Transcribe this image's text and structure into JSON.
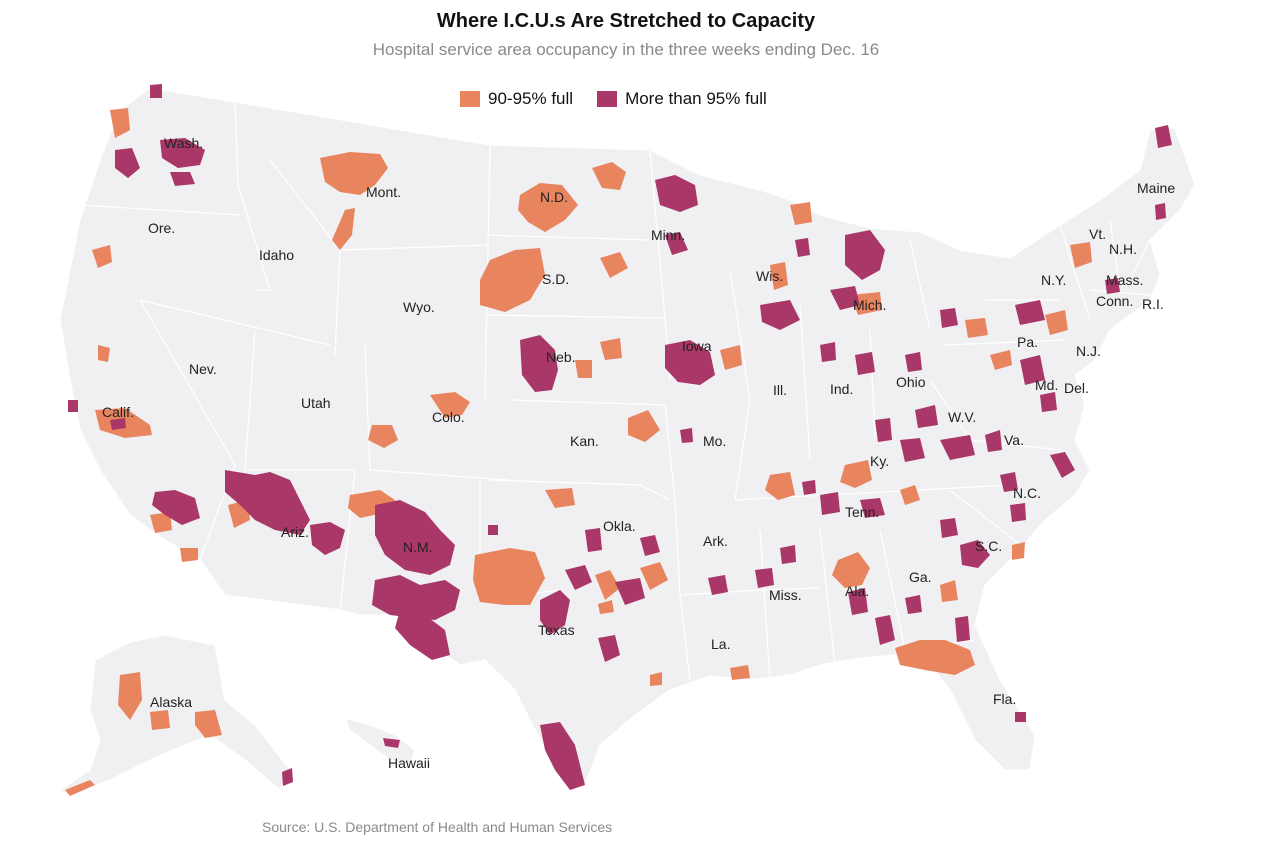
{
  "title": "Where I.C.U.s Are Stretched to Capacity",
  "subtitle": "Hospital service area occupancy in the three weeks ending Dec. 16",
  "legend": [
    {
      "label": "90-95% full",
      "color": "#e8845e"
    },
    {
      "label": "More than 95% full",
      "color": "#a93767"
    }
  ],
  "colors": {
    "land": "#f0eff2",
    "border": "#ffffff",
    "high": "#e8845e",
    "very_high": "#a93767"
  },
  "source": "Source: U.S. Department of Health and Human Services",
  "state_labels": {
    "wash": "Wash.",
    "ore": "Ore.",
    "idaho": "Idaho",
    "mont": "Mont.",
    "wyo": "Wyo.",
    "nd": "N.D.",
    "sd": "S.D.",
    "neb": "Neb.",
    "kan": "Kan.",
    "colo": "Colo.",
    "utah": "Utah",
    "nev": "Nev.",
    "calif": "Calif.",
    "ariz": "Ariz.",
    "nm": "N.M.",
    "texas": "Texas",
    "okla": "Okla.",
    "minn": "Minn.",
    "iowa": "Iowa",
    "mo": "Mo.",
    "ark": "Ark.",
    "la": "La.",
    "wis": "Wis.",
    "ill": "Ill.",
    "mich": "Mich.",
    "ind": "Ind.",
    "ohio": "Ohio",
    "ky": "Ky.",
    "tenn": "Tenn.",
    "miss": "Miss.",
    "ala": "Ala.",
    "ga": "Ga.",
    "fla": "Fla.",
    "sc": "S.C.",
    "nc": "N.C.",
    "va": "Va.",
    "wv": "W.V.",
    "md": "Md.",
    "del": "Del.",
    "nj": "N.J.",
    "pa": "Pa.",
    "ny": "N.Y.",
    "vt": "Vt.",
    "nh": "N.H.",
    "maine": "Maine",
    "mass": "Mass.",
    "conn": "Conn.",
    "ri": "R.I.",
    "alaska": "Alaska",
    "hawaii": "Hawaii"
  }
}
